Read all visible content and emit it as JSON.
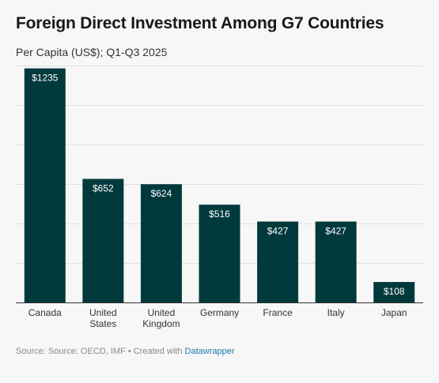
{
  "header": {
    "title": "Foreign Direct Investment Among G7 Countries",
    "subtitle": "Per Capita (US$); Q1-Q3 2025"
  },
  "footer": {
    "source": "Source: Source: OECD, IMF • Created with ",
    "credit": "Datawrapper"
  },
  "colors": {
    "bar": "#003a3c",
    "label": "#ffffff",
    "grid": "#e0e0e0",
    "axis": "#333333"
  },
  "chart_data": {
    "type": "bar",
    "title": "Foreign Direct Investment Among G7 Countries",
    "subtitle": "Per Capita (US$); Q1-Q3 2025",
    "categories": [
      [
        "Canada"
      ],
      [
        "United",
        "States"
      ],
      [
        "United",
        "Kingdom"
      ],
      [
        "Germany"
      ],
      [
        "France"
      ],
      [
        "Italy"
      ],
      [
        "Japan"
      ]
    ],
    "values": [
      1235,
      652,
      624,
      516,
      427,
      427,
      108
    ],
    "value_labels": [
      "$1235",
      "$652",
      "$624",
      "$516",
      "$427",
      "$427",
      "$108"
    ],
    "ylim": [
      0,
      1250
    ],
    "grid": true,
    "gridlines": [
      0,
      208,
      416,
      625,
      833,
      1041,
      1250
    ]
  }
}
